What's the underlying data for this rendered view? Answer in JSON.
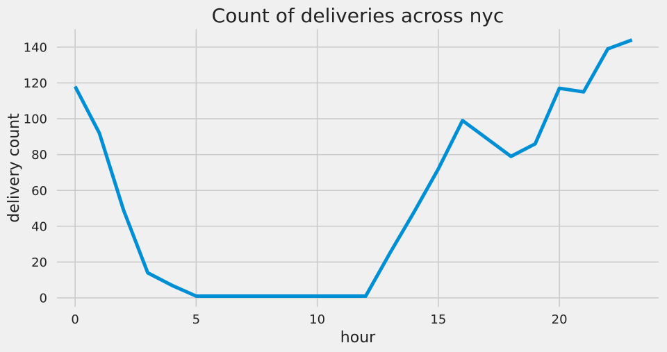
{
  "chart_data": {
    "type": "line",
    "title": "Count of deliveries across nyc",
    "xlabel": "hour",
    "ylabel": "delivery count",
    "xlim": [
      -0.75,
      24.1
    ],
    "ylim": [
      -5,
      150
    ],
    "xticks": [
      0,
      5,
      10,
      15,
      20
    ],
    "yticks": [
      0,
      20,
      40,
      60,
      80,
      100,
      120,
      140
    ],
    "grid": true,
    "color": "#008fd5",
    "series": [
      {
        "x": [
          0,
          1,
          2,
          3,
          4,
          5,
          6,
          7,
          8,
          9,
          10,
          11,
          12,
          13,
          14,
          15,
          16,
          17,
          18,
          19,
          20,
          21,
          22,
          23
        ],
        "values": [
          118,
          92,
          49,
          14,
          7,
          1,
          1,
          1,
          1,
          1,
          1,
          1,
          1,
          25,
          48,
          72,
          99,
          89,
          79,
          86,
          117,
          115,
          139,
          144
        ]
      }
    ]
  }
}
